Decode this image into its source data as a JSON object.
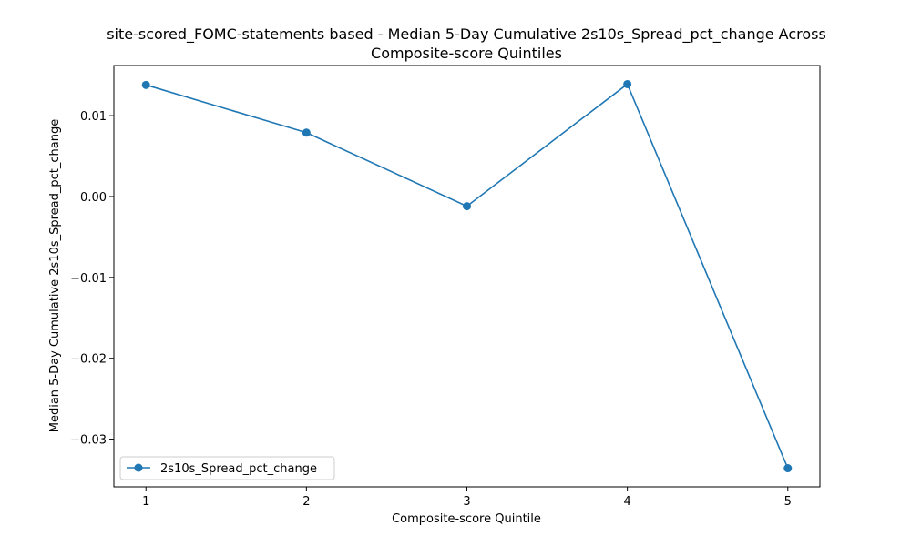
{
  "chart_data": {
    "type": "line",
    "title_line1": "site-scored_FOMC-statements based - Median 5-Day Cumulative 2s10s_Spread_pct_change Across",
    "title_line2": "Composite-score Quintiles",
    "xlabel": "Composite-score Quintile",
    "ylabel": "Median 5-Day Cumulative 2s10s_Spread_pct_change",
    "x": [
      1,
      2,
      3,
      4,
      5
    ],
    "x_ticks": [
      1,
      2,
      3,
      4,
      5
    ],
    "x_tick_labels": [
      "1",
      "2",
      "3",
      "4",
      "5"
    ],
    "y_ticks": [
      0.01,
      0.0,
      -0.01,
      -0.02,
      -0.03
    ],
    "y_tick_labels": [
      "0.01",
      "0.00",
      "−0.01",
      "−0.02",
      "−0.03"
    ],
    "xlim": [
      0.8,
      5.2
    ],
    "ylim": [
      -0.0359,
      0.0162
    ],
    "grid": false,
    "legend_position": "lower-left",
    "series": [
      {
        "name": "2s10s_Spread_pct_change",
        "color": "#1f77b4",
        "marker": "circle",
        "values": [
          0.0138,
          0.0079,
          -0.0012,
          0.0139,
          -0.0336
        ]
      }
    ]
  }
}
